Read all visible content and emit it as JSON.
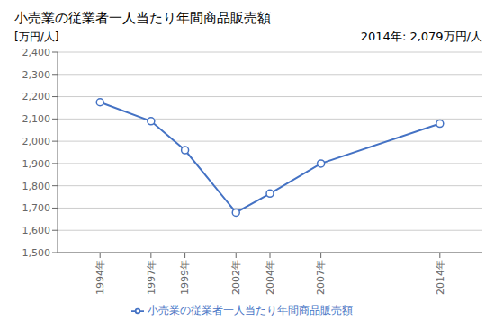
{
  "chart_data": {
    "type": "line",
    "title": "小売業の従業者一人当たり年間商品販売額",
    "ylabel": "[万円/人]",
    "annotation": "2014年: 2,079万円/人",
    "x": [
      1994,
      1997,
      1999,
      2002,
      2004,
      2007,
      2014
    ],
    "series": [
      {
        "name": "小売業の従業者一人当たり年間商品販売額",
        "color": "#4472C4",
        "marker": "circle",
        "line_style": "solid",
        "values": [
          2175,
          2090,
          1960,
          1680,
          1765,
          1900,
          2079
        ]
      }
    ],
    "xlim": [
      1991.5,
      2016.5
    ],
    "xticks": [
      {
        "value": 1994,
        "label": "1994年"
      },
      {
        "value": 1997,
        "label": "1997年"
      },
      {
        "value": 1999,
        "label": "1999年"
      },
      {
        "value": 2002,
        "label": "2002年"
      },
      {
        "value": 2004,
        "label": "2004年"
      },
      {
        "value": 2007,
        "label": "2007年"
      },
      {
        "value": 2014,
        "label": "2014年"
      }
    ],
    "ylim": [
      1500,
      2400
    ],
    "yticks": [
      {
        "value": 1500,
        "label": "1,500"
      },
      {
        "value": 1600,
        "label": "1,600"
      },
      {
        "value": 1700,
        "label": "1,700"
      },
      {
        "value": 1800,
        "label": "1,800"
      },
      {
        "value": 1900,
        "label": "1,900"
      },
      {
        "value": 2000,
        "label": "2,000"
      },
      {
        "value": 2100,
        "label": "2,100"
      },
      {
        "value": 2200,
        "label": "2,200"
      },
      {
        "value": 2300,
        "label": "2,300"
      },
      {
        "value": 2400,
        "label": "2,400"
      }
    ],
    "grid": "y",
    "legend": "bottom"
  }
}
